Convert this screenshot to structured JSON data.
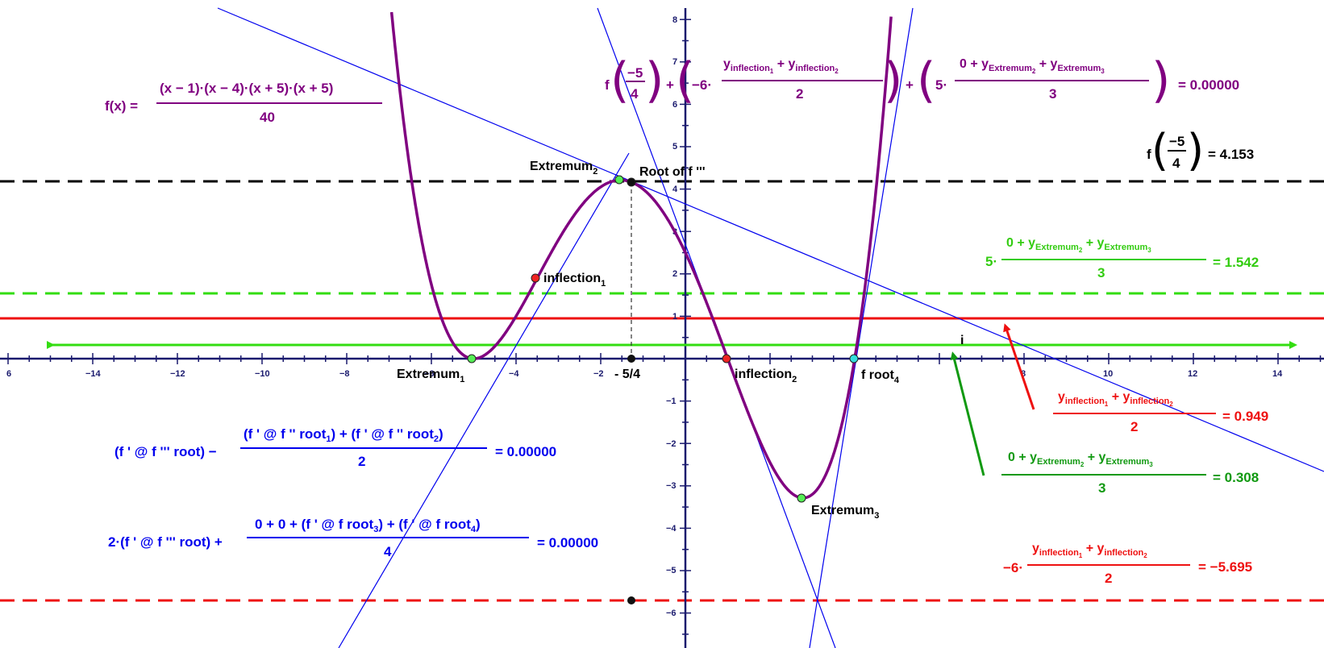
{
  "axes": {
    "x_ticks": [
      "6",
      "−14",
      "−12",
      "−10",
      "−8",
      "−6",
      "−4",
      "−2",
      "8",
      "10",
      "12",
      "14"
    ],
    "y_ticks": [
      "8",
      "7",
      "6",
      "5",
      "4",
      "3",
      "2",
      "1",
      "−1",
      "−2",
      "−3",
      "−4",
      "−5",
      "−6"
    ]
  },
  "function": {
    "lhs": "f(x) =",
    "numerator": "(x − 1)·(x − 4)·(x + 5)·(x + 5)",
    "denominator": "40"
  },
  "points": {
    "extremum1": {
      "text": "Extremum",
      "sub": "1"
    },
    "extremum2": {
      "text": "Extremum",
      "sub": "2"
    },
    "extremum3": {
      "text": "Extremum",
      "sub": "3"
    },
    "inflection1": {
      "text": "inflection",
      "sub": "1"
    },
    "inflection2": {
      "text": "inflection",
      "sub": "2"
    },
    "root_f3": {
      "text": "Root of f '''"
    },
    "froot4": {
      "text": "f root",
      "sub": "4"
    },
    "minus_five_quarters": {
      "text": "- 5/4"
    },
    "i_label": {
      "text": "i"
    }
  },
  "top_equation": {
    "f_prefix": "f",
    "frac_num": "−5",
    "frac_den": "4",
    "plus": "+",
    "minus6": "−6·",
    "yinf1": "y",
    "yinf1_sub": "inflection",
    "yinf1_sub2": "1",
    "plus_between": " + ",
    "yinf2": "y",
    "yinf2_sub": "inflection",
    "yinf2_sub2": "2",
    "den2": "2",
    "five": "5·",
    "zero_plus": "0 + ",
    "yext2": "y",
    "yext2_sub": "Extremum",
    "yext2_sub2": "2",
    "yext3": "y",
    "yext3_sub": "Extremum",
    "yext3_sub2": "3",
    "den3": "3",
    "result": "= 0.00000"
  },
  "f_value": {
    "prefix": "f",
    "num": "−5",
    "den": "4",
    "result": "= 4.153"
  },
  "green_eq": {
    "coef": "5·",
    "num_prefix": "0 + y",
    "sub_a": "Extremum",
    "sub_a2": "2",
    "mid": " + y",
    "sub_b": "Extremum",
    "sub_b2": "3",
    "den": "3",
    "result": "= 1.542"
  },
  "red_avg": {
    "y1": "y",
    "sub1": "inflection",
    "sub1b": "1",
    "plus": " + y",
    "sub2": "inflection",
    "sub2b": "2",
    "den": "2",
    "result": "= 0.949"
  },
  "dkgreen_avg": {
    "num_prefix": "0 + y",
    "sub_a": "Extremum",
    "sub_a2": "2",
    "mid": " + y",
    "sub_b": "Extremum",
    "sub_b2": "3",
    "den": "3",
    "result": "= 0.308"
  },
  "red_scaled": {
    "coef": "−6·",
    "y1": "y",
    "sub1": "inflection",
    "sub1b": "1",
    "plus": " + y",
    "sub2": "inflection",
    "sub2b": "2",
    "den": "2",
    "result": "= −5.695"
  },
  "blue_eq1": {
    "lhs": "(f ' @ f ''' root) −",
    "num_a": "(f ' @ f '' root",
    "sub_a": "1",
    "num_mid": ") + (f ' @ f '' root",
    "sub_b": "2",
    "num_end": ")",
    "den": "2",
    "result": "= 0.00000"
  },
  "blue_eq2": {
    "lhs": "2·(f ' @ f ''' root) +",
    "num_a": "0 + 0 + (f ' @  f root",
    "sub_a": "3",
    "num_mid": ") + (f ' @ f root",
    "sub_b": "4",
    "num_end": ")",
    "den": "4",
    "result": "= 0.00000"
  },
  "colors": {
    "purple": "#800080",
    "blue": "#0000ee",
    "red": "#ee1111",
    "green": "#33dd11",
    "dkgreen": "#119911",
    "black": "#000000",
    "axis": "#1a1a6e"
  }
}
